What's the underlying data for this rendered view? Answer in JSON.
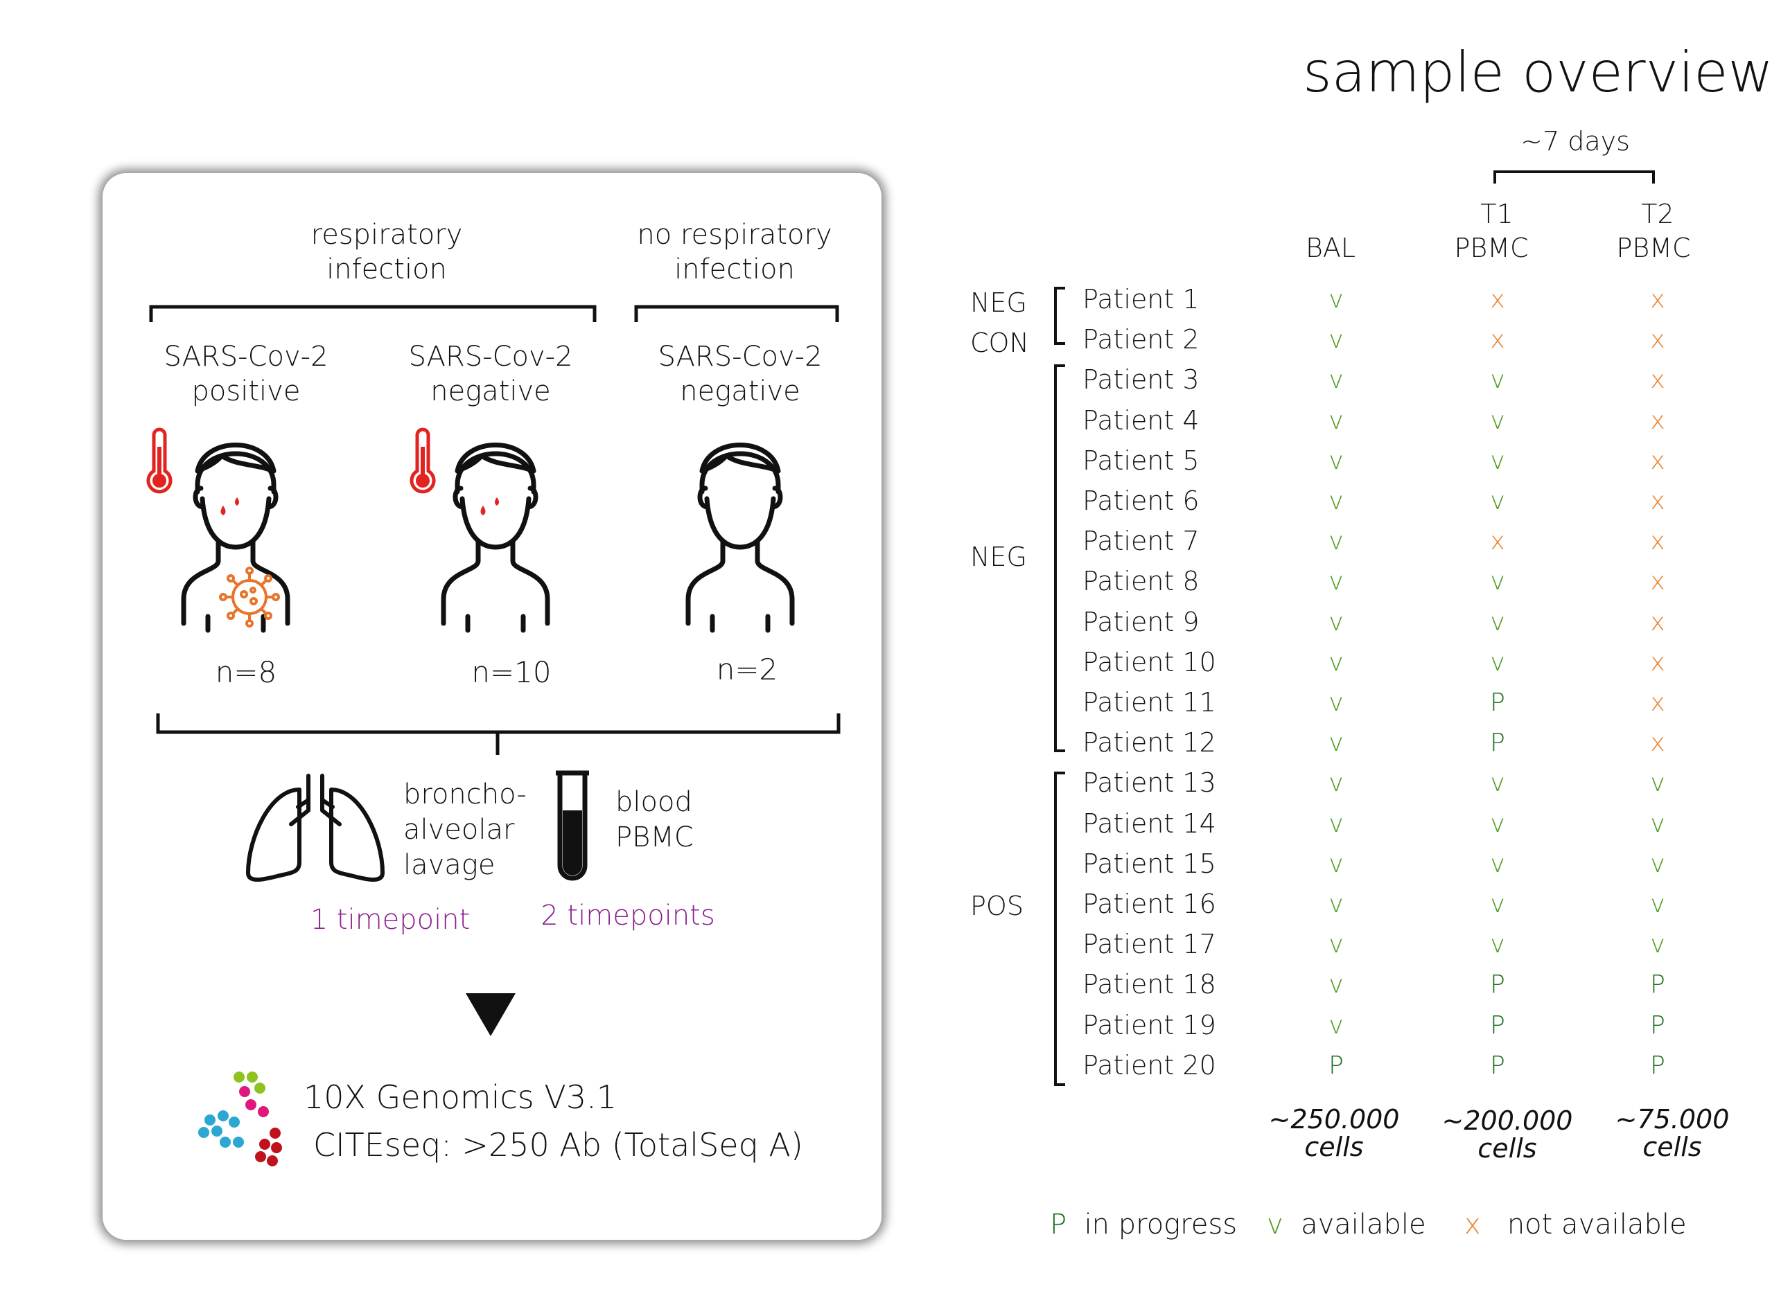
{
  "title": "sample overview",
  "panel": {
    "groups": [
      {
        "header": "respiratory infection",
        "line1": "respiratory",
        "line2": "infection"
      },
      {
        "header": "no respiratory infection",
        "line1": "no respiratory",
        "line2": "infection"
      }
    ],
    "cohorts": [
      {
        "line1": "SARS-Cov-2",
        "line2": "positive",
        "n": "n=8"
      },
      {
        "line1": "SARS-Cov-2",
        "line2": "negative",
        "n": "n=10"
      },
      {
        "line1": "SARS-Cov-2",
        "line2": "negative",
        "n": "n=2"
      }
    ],
    "bal": {
      "line1": "broncho-",
      "line2": "alveolar",
      "line3": "lavage",
      "timepoints": "1 timepoint"
    },
    "blood": {
      "line1": "blood",
      "line2": "PBMC",
      "timepoints": "2 timepoints"
    },
    "method": {
      "line1": "10X Genomics V3.1",
      "line2": "CITEseq: >250 Ab (TotalSeq A)"
    }
  },
  "table": {
    "span_label": "~7 days",
    "columns": [
      {
        "top": "",
        "bottom": "BAL"
      },
      {
        "top": "T1",
        "bottom": "PBMC"
      },
      {
        "top": "T2",
        "bottom": "PBMC"
      }
    ],
    "groups": [
      {
        "line1": "NEG",
        "line2": "CON"
      },
      {
        "line1": "NEG",
        "line2": ""
      },
      {
        "line1": "POS",
        "line2": ""
      }
    ],
    "rows": [
      {
        "patient": "Patient 1",
        "bal": "v",
        "t1": "x",
        "t2": "x"
      },
      {
        "patient": "Patient 2",
        "bal": "v",
        "t1": "x",
        "t2": "x"
      },
      {
        "patient": "Patient 3",
        "bal": "v",
        "t1": "v",
        "t2": "x"
      },
      {
        "patient": "Patient 4",
        "bal": "v",
        "t1": "v",
        "t2": "x"
      },
      {
        "patient": "Patient 5",
        "bal": "v",
        "t1": "v",
        "t2": "x"
      },
      {
        "patient": "Patient 6",
        "bal": "v",
        "t1": "v",
        "t2": "x"
      },
      {
        "patient": "Patient 7",
        "bal": "v",
        "t1": "x",
        "t2": "x"
      },
      {
        "patient": "Patient 8",
        "bal": "v",
        "t1": "v",
        "t2": "x"
      },
      {
        "patient": "Patient 9",
        "bal": "v",
        "t1": "v",
        "t2": "x"
      },
      {
        "patient": "Patient 10",
        "bal": "v",
        "t1": "v",
        "t2": "x"
      },
      {
        "patient": "Patient 11",
        "bal": "v",
        "t1": "P",
        "t2": "x"
      },
      {
        "patient": "Patient 12",
        "bal": "v",
        "t1": "P",
        "t2": "x"
      },
      {
        "patient": "Patient 13",
        "bal": "v",
        "t1": "v",
        "t2": "v"
      },
      {
        "patient": "Patient 14",
        "bal": "v",
        "t1": "v",
        "t2": "v"
      },
      {
        "patient": "Patient 15",
        "bal": "v",
        "t1": "v",
        "t2": "v"
      },
      {
        "patient": "Patient 16",
        "bal": "v",
        "t1": "v",
        "t2": "v"
      },
      {
        "patient": "Patient 17",
        "bal": "v",
        "t1": "v",
        "t2": "v"
      },
      {
        "patient": "Patient 18",
        "bal": "v",
        "t1": "P",
        "t2": "P"
      },
      {
        "patient": "Patient 19",
        "bal": "v",
        "t1": "P",
        "t2": "P"
      },
      {
        "patient": "Patient 20",
        "bal": "P",
        "t1": "P",
        "t2": "P"
      }
    ],
    "totals": [
      {
        "value": "~250.000",
        "unit": "cells"
      },
      {
        "value": "~200.000",
        "unit": "cells"
      },
      {
        "value": "~75.000",
        "unit": "cells"
      }
    ]
  },
  "legend": [
    {
      "symbol": "P",
      "label": "in progress",
      "color": "#1f6e21"
    },
    {
      "symbol": "v",
      "label": "available",
      "color": "#4c9a1c"
    },
    {
      "symbol": "x",
      "label": "not available",
      "color": "#e8822a"
    }
  ],
  "colors": {
    "purple_text": "#8a1f8f",
    "fever_red": "#e32320",
    "virus_orange": "#e8742a"
  }
}
